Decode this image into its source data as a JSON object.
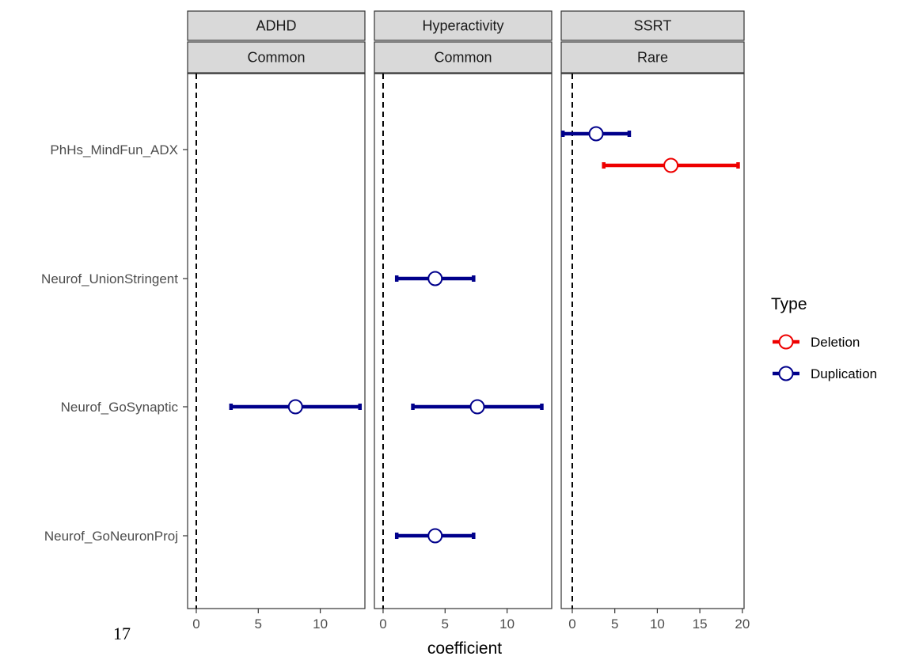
{
  "page_number": "17",
  "chart_data": {
    "type": "scatter",
    "subtype": "faceted forest plot with error bars",
    "xlabel": "coefficient",
    "ylabel": "",
    "categories": [
      "PhHs_MindFun_ADX",
      "Neurof_UnionStringent",
      "Neurof_GoSynaptic",
      "Neurof_GoNeuronProj"
    ],
    "reference_line": 0,
    "legend": {
      "title": "Type",
      "placement": "right",
      "entries": [
        {
          "name": "Deletion",
          "color": "#ee0000"
        },
        {
          "name": "Duplication",
          "color": "#00008b"
        }
      ]
    },
    "panels": [
      {
        "strip_top": "ADHD",
        "strip_bottom": "Common",
        "xlim": [
          -0.7,
          13.6
        ],
        "xticks": [
          0,
          5,
          10
        ],
        "points": [
          {
            "category": "Neurof_GoSynaptic",
            "type": "Duplication",
            "estimate": 8.0,
            "lower": 2.8,
            "upper": 13.2
          }
        ]
      },
      {
        "strip_top": "Hyperactivity",
        "strip_bottom": "Common",
        "xlim": [
          -0.7,
          13.6
        ],
        "xticks": [
          0,
          5,
          10
        ],
        "points": [
          {
            "category": "Neurof_UnionStringent",
            "type": "Duplication",
            "estimate": 4.2,
            "lower": 1.1,
            "upper": 7.3
          },
          {
            "category": "Neurof_GoSynaptic",
            "type": "Duplication",
            "estimate": 7.6,
            "lower": 2.4,
            "upper": 12.8
          },
          {
            "category": "Neurof_GoNeuronProj",
            "type": "Duplication",
            "estimate": 4.2,
            "lower": 1.1,
            "upper": 7.3
          }
        ]
      },
      {
        "strip_top": "SSRT",
        "strip_bottom": "Rare",
        "xlim": [
          -1.3,
          20.2
        ],
        "xticks": [
          0,
          5,
          10,
          15,
          20
        ],
        "points": [
          {
            "category": "PhHs_MindFun_ADX",
            "type": "Duplication",
            "estimate": 2.8,
            "lower": -1.1,
            "upper": 6.7
          },
          {
            "category": "PhHs_MindFun_ADX",
            "type": "Deletion",
            "estimate": 11.6,
            "lower": 3.7,
            "upper": 19.5
          }
        ]
      }
    ]
  }
}
